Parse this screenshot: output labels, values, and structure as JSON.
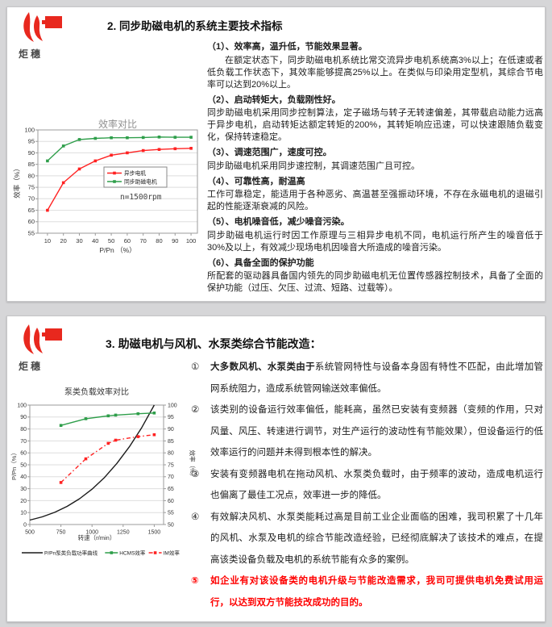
{
  "logo": {
    "text": "炬穗"
  },
  "colors": {
    "accent_red": "#e8281e",
    "highlight_red": "#ff0000",
    "chart_red": "#ff2222",
    "chart_green": "#2e9e4a",
    "chart_black": "#1a1a1a"
  },
  "page2": {
    "title": "2. 同步助磁电机的系统主要技术指标",
    "blocks": [
      {
        "heading": "（1）、效率高，温升低，节能效果显著。",
        "paragraph": "在额定状态下，同步助磁电机系统比常交流异步电机系统高3%以上；在低速或者低负载工作状态下，其效率能够提高25%以上。在类似与印染用定型机，其综合节电率可以达到20%以上。",
        "indent": true
      },
      {
        "heading": "（2）、启动转矩大，负载刚性好。",
        "paragraph": "同步助磁电机采用同步控制算法，定子磁场与转子无转速偏差，其带载启动能力远高于异步电机，启动转矩达额定转矩的200%，其转矩响应迅速，可以快速跟随负载变化，保持转速稳定。"
      },
      {
        "heading": "（3）、调速范围广，速度可控。",
        "paragraph": "同步助磁电机采用同步速控制，其调速范围广且可控。"
      },
      {
        "heading": "（4）、可靠性高，耐温高",
        "paragraph": "工作可靠稳定，能适用于各种恶劣、高温甚至强振动环境，不存在永磁电机的退磁引起的性能逐渐衰减的风险。"
      },
      {
        "heading": "（5）、电机噪音低，减少噪音污染。",
        "paragraph": "同步助磁电机运行时因工作原理与三相异步电机不同，电机运行所产生的噪音低于30%及以上，有效减少现场电机因噪音大所造成的噪音污染。"
      },
      {
        "heading": "（6）、具备全面的保护功能",
        "paragraph": "所配套的驱动器具备国内领先的同步助磁电机无位置传感器控制技术，具备了全面的保护功能（过压、欠压、过流、短路、过载等）。"
      }
    ]
  },
  "page3": {
    "title": "3. 助磁电机与风机、水泵类综合节能改造：",
    "items": [
      {
        "num": "①",
        "bold": "大多数风机、水泵类由于",
        "text": "系统管网特性与设备本身固有特性不匹配，由此增加管网系统阻力，造成系统管网输送效率偏低。",
        "red": false
      },
      {
        "num": "②",
        "bold": "",
        "text": "该类别的设备运行效率偏低，能耗高，虽然已安装有变频器（变频的作用，只对风量、风压、转速进行调节，对生产运行的波动性有节能效果），但设备运行的低效率运行的问题并未得到根本性的解决。",
        "red": false
      },
      {
        "num": "③",
        "bold": "",
        "text": "安装有变频器电机在拖动风机、水泵类负载时，由于频率的波动，造成电机运行也偏离了最佳工况点，效率进一步的降低。",
        "red": false
      },
      {
        "num": "④",
        "bold": "",
        "text": "有效解决风机、水泵类能耗过高是目前工业企业面临的困难，我司积累了十几年的风机、水泵及电机的综合节能改造经验，已经彻底解决了该技术的难点，在提高该类设备负载及电机的系统节能有众多的案例。",
        "red": false
      },
      {
        "num": "⑤",
        "bold": "",
        "text": "如企业有对该设备类的电机升级与节能改造需求，我司可提供电机免费试用运行，以达到双方节能技改成功的目的。",
        "red": true
      }
    ]
  },
  "chart_data": [
    {
      "type": "line",
      "title": "效率对比",
      "xlabel": "P/Pn （%）",
      "ylabel": "效率（%）",
      "annotation": "n=1500rpm",
      "legend_position": "inside",
      "grid": true,
      "x": [
        10,
        20,
        30,
        40,
        50,
        60,
        70,
        80,
        90,
        100
      ],
      "xlim": [
        4,
        104
      ],
      "xticks": [
        10,
        20,
        30,
        40,
        50,
        60,
        70,
        80,
        90,
        100
      ],
      "ylim": [
        55,
        100
      ],
      "yticks": [
        55,
        60,
        65,
        70,
        75,
        80,
        85,
        90,
        95,
        100
      ],
      "series": [
        {
          "name": "异步电机",
          "color": "#ff2222",
          "marker": "square",
          "dash": "solid",
          "axis": "left",
          "values": [
            65,
            77,
            83,
            86.5,
            89,
            90,
            91,
            91.5,
            91.8,
            92
          ]
        },
        {
          "name": "同步助磁电机",
          "color": "#2e9e4a",
          "marker": "square",
          "dash": "solid",
          "axis": "left",
          "values": [
            86.5,
            93,
            95.8,
            96.3,
            96.6,
            96.6,
            96.7,
            96.9,
            96.8,
            96.8
          ]
        }
      ]
    },
    {
      "type": "line",
      "title": "泵类负载效率对比",
      "xlabel": "转速（r/min）",
      "ylabel": "P/Pn（%）",
      "ylabel_right": "效率（%）",
      "legend_position": "below",
      "grid": true,
      "xlim": [
        500,
        1575
      ],
      "xticks": [
        500,
        750,
        1000,
        1250,
        1500
      ],
      "ylim": [
        0,
        100
      ],
      "yticks": [
        0,
        10,
        20,
        30,
        40,
        50,
        60,
        70,
        80,
        90,
        100
      ],
      "ylim_right": [
        50,
        100
      ],
      "yticks_right": [
        50,
        55,
        60,
        65,
        70,
        75,
        80,
        85,
        90,
        95,
        100
      ],
      "series": [
        {
          "name": "P/Pn泵类负载功率曲线",
          "color": "#1a1a1a",
          "marker": "none",
          "dash": "solid",
          "axis": "left",
          "x": [
            500,
            600,
            700,
            800,
            900,
            1000,
            1100,
            1200,
            1300,
            1400,
            1500
          ],
          "values": [
            3.7,
            6.4,
            10.2,
            15.2,
            21.6,
            29.6,
            39.4,
            51.2,
            65.1,
            81.3,
            100
          ]
        },
        {
          "name": "HCMS效率",
          "color": "#2e9e4a",
          "marker": "square",
          "dash": "solid",
          "axis": "right",
          "x": [
            750,
            950,
            1130,
            1190,
            1370,
            1500
          ],
          "values": [
            91.5,
            94.3,
            95.5,
            95.8,
            96.4,
            96.7
          ]
        },
        {
          "name": "IM效率",
          "color": "#ff2222",
          "marker": "square",
          "dash": "dashdot",
          "axis": "right",
          "x": [
            750,
            950,
            1130,
            1190,
            1370,
            1500
          ],
          "values": [
            67.6,
            77.5,
            84,
            85.3,
            86.8,
            87.6
          ]
        }
      ]
    }
  ]
}
